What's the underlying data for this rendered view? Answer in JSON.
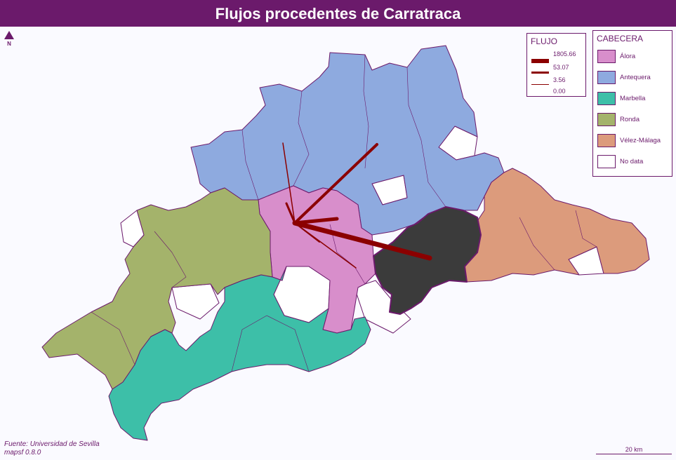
{
  "title": "Flujos procedentes de Carratraca",
  "north": {
    "label": "N",
    "icon": "north-arrow-icon"
  },
  "flow_legend": {
    "title": "FLUJO",
    "values": [
      "1805.66",
      "53.07",
      "3.56",
      "0.00"
    ],
    "color": "#8b0000"
  },
  "region_legend": {
    "title": "CABECERA",
    "items": [
      {
        "label": "Álora",
        "color": "#d88ecb"
      },
      {
        "label": "Antequera",
        "color": "#8eaadf"
      },
      {
        "label": "Marbella",
        "color": "#3dbfa8"
      },
      {
        "label": "Ronda",
        "color": "#a4b36b"
      },
      {
        "label": "Vélez-Málaga",
        "color": "#dc9b7c"
      },
      {
        "label": "No data",
        "color": "#ffffff"
      }
    ]
  },
  "highlight_color": "#3b3b3b",
  "border_color": "#6b1a6b",
  "source": {
    "line1": "Fuente: Universidad de Sevilla",
    "line2": "mapsf 0.8.0"
  },
  "scale": {
    "label": "20 km"
  }
}
